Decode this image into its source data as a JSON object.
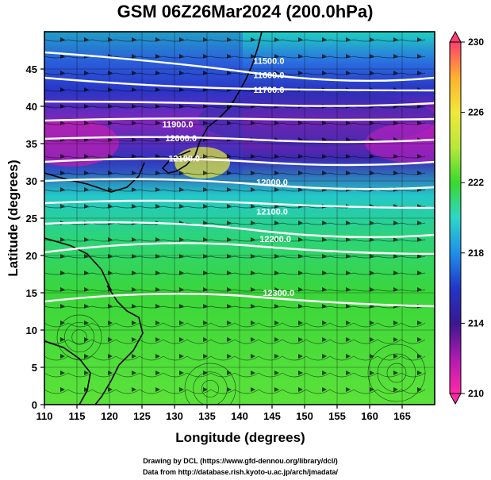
{
  "figure": {
    "title": "GSM 06Z26Mar2024 (200.0hPa)",
    "xlabel": "Longitude (degrees)",
    "ylabel": "Latitude  (degrees)",
    "credit_line1": "Drawing by DCL (https://www.gfd-dennou.org/library/dcl/)",
    "credit_line2": "Data from http://database.rish.kyoto-u.ac.jp/arch/jmadata/"
  },
  "axes": {
    "x_ticks": [
      "110",
      "115",
      "120",
      "125",
      "130",
      "135",
      "140",
      "145",
      "150",
      "155",
      "160",
      "165"
    ],
    "y_ticks": [
      "0",
      "5",
      "10",
      "15",
      "20",
      "25",
      "30",
      "35",
      "40",
      "45"
    ],
    "xlim": [
      110,
      170
    ],
    "ylim": [
      0,
      50
    ]
  },
  "colorbar": {
    "ticks": [
      "230",
      "226",
      "222",
      "218",
      "214",
      "210"
    ],
    "range": [
      210,
      230
    ],
    "colors": [
      "#ff3f6f",
      "#ffb030",
      "#f0e83a",
      "#b8e83a",
      "#39d92e",
      "#2fd6c8",
      "#1f8fe8",
      "#2236c8",
      "#3a1890",
      "#b01ab0",
      "#ff2aa8"
    ]
  },
  "contours": [
    {
      "label": "11500.0",
      "lon": 144.5,
      "lat": 45.7
    },
    {
      "label": "11600.0",
      "lon": 144.5,
      "lat": 43.8
    },
    {
      "label": "11700.0",
      "lon": 144.5,
      "lat": 41.8
    },
    {
      "label": "12000.0",
      "lon": 145.0,
      "lat": 29.4
    },
    {
      "label": "12100.0",
      "lon": 145.0,
      "lat": 25.5
    },
    {
      "label": "12200.0",
      "lon": 145.5,
      "lat": 21.8
    },
    {
      "label": "12300.0",
      "lon": 146.0,
      "lat": 14.6
    },
    {
      "label": "11900.0",
      "lon": 130.5,
      "lat": 37.2
    },
    {
      "label": "12000.0",
      "lon": 131.0,
      "lat": 35.3
    },
    {
      "label": "12100.0",
      "lon": 131.5,
      "lat": 32.6
    }
  ]
}
